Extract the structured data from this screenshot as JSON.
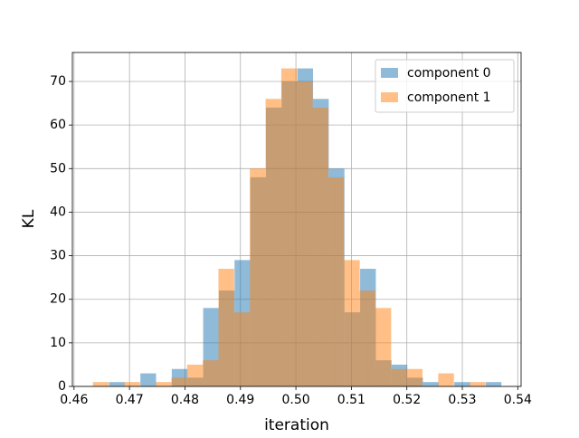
{
  "chart_data": {
    "type": "histogram",
    "xlabel": "iteration",
    "ylabel": "KL",
    "xlim": [
      0.4597,
      0.5406
    ],
    "ylim": [
      0,
      76.65
    ],
    "xticks": [
      0.46,
      0.47,
      0.48,
      0.49,
      {
        "value": 0.5,
        "label": "0.50"
      },
      0.51,
      0.52,
      0.53,
      0.54
    ],
    "yticks": [
      0,
      10,
      20,
      30,
      40,
      50,
      60,
      70
    ],
    "grid": true,
    "legend": "upper right",
    "opacity": 0.5,
    "series": [
      {
        "name": "component 0",
        "color": "#1f77b4",
        "bins": [
          0.4663,
          0.46913,
          0.47196,
          0.47479,
          0.47762,
          0.48045,
          0.48328,
          0.48611,
          0.48894,
          0.49177,
          0.4946,
          0.49743,
          0.50026,
          0.50309,
          0.50592,
          0.50875,
          0.51158,
          0.51441,
          0.51724,
          0.52007,
          0.5229,
          0.52573,
          0.52856,
          0.53139,
          0.53422,
          0.53705
        ],
        "values": [
          1,
          0,
          3,
          0,
          4,
          2,
          18,
          22,
          29,
          48,
          64,
          70,
          73,
          66,
          50,
          17,
          27,
          6,
          5,
          2,
          1,
          0,
          1,
          0,
          1
        ]
      },
      {
        "name": "component 1",
        "color": "#ff7f0e",
        "bins": [
          0.4634,
          0.46623,
          0.46906,
          0.47189,
          0.47472,
          0.47755,
          0.48038,
          0.48321,
          0.48604,
          0.48887,
          0.4917,
          0.49453,
          0.49736,
          0.50019,
          0.50302,
          0.50585,
          0.50868,
          0.51151,
          0.51434,
          0.51717,
          0.52,
          0.52283,
          0.52566,
          0.52849,
          0.53132,
          0.53415
        ],
        "values": [
          1,
          0,
          1,
          0,
          1,
          2,
          5,
          6,
          27,
          17,
          50,
          66,
          73,
          70,
          64,
          48,
          29,
          22,
          18,
          4,
          4,
          0,
          3,
          0,
          1
        ]
      }
    ]
  }
}
